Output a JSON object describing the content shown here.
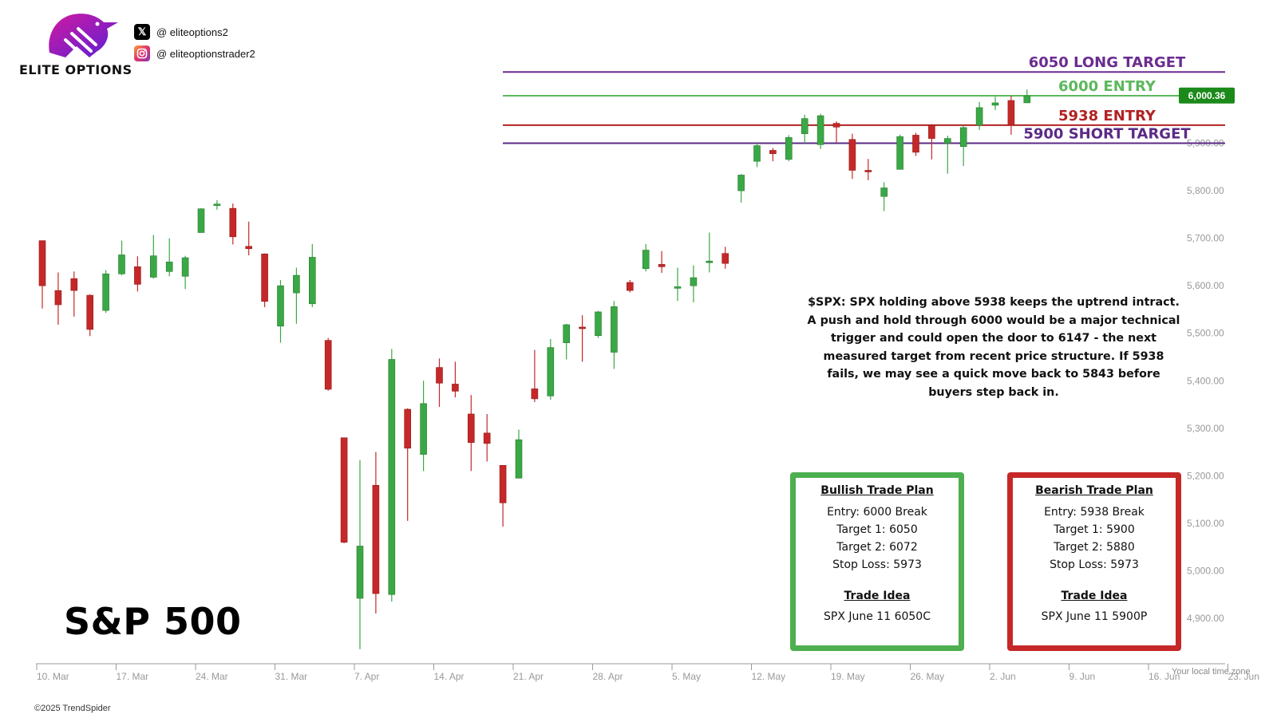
{
  "brand": {
    "name": "ELITE OPTIONS",
    "twitter": "@  eliteoptions2",
    "instagram": "@  eliteoptionstrader2",
    "twitter_icon": "x-logo-icon",
    "instagram_icon": "instagram-icon"
  },
  "title": "S&P 500",
  "commentary": "$SPX: SPX holding above 5938 keeps the uptrend intract. A push and hold through 6000 would be a major technical trigger and could open the door to 6147 - the next measured target from recent price structure. If 5938 fails, we may see a quick move back to 5843 before buyers step back in.",
  "bullish_plan": {
    "heading": "Bullish Trade Plan",
    "lines": [
      "Entry: 6000 Break",
      "Target 1: 6050",
      "Target 2: 6072",
      "Stop Loss: 5973"
    ],
    "idea_heading": "Trade Idea",
    "idea": "SPX June 11 6050C",
    "color": "#4caf50"
  },
  "bearish_plan": {
    "heading": "Bearish Trade Plan",
    "lines": [
      "Entry: 5938 Break",
      "Target 1: 5900",
      "Target 2: 5880",
      "Stop Loss: 5973"
    ],
    "idea_heading": "Trade Idea",
    "idea": "SPX June 11 5900P",
    "color": "#c62828"
  },
  "copyright": "©2025 TrendSpider",
  "timezone_note": "Your local time zone",
  "chart_data": {
    "type": "candlestick",
    "ylim": [
      4820,
      6100
    ],
    "y_ticks": [
      {
        "value": 5900,
        "label": "5,900.00"
      },
      {
        "value": 5800,
        "label": "5,800.00"
      },
      {
        "value": 5700,
        "label": "5,700.00"
      },
      {
        "value": 5600,
        "label": "5,600.00"
      },
      {
        "value": 5500,
        "label": "5,500.00"
      },
      {
        "value": 5400,
        "label": "5,400.00"
      },
      {
        "value": 5300,
        "label": "5,300.00"
      },
      {
        "value": 5200,
        "label": "5,200.00"
      },
      {
        "value": 5100,
        "label": "5,100.00"
      },
      {
        "value": 5000,
        "label": "5,000.00"
      },
      {
        "value": 4900,
        "label": "4,900.00"
      }
    ],
    "x_ticks": [
      "10. Mar",
      "17. Mar",
      "24. Mar",
      "31. Mar",
      "7. Apr",
      "14. Apr",
      "21. Apr",
      "28. Apr",
      "5. May",
      "12. May",
      "19. May",
      "26. May",
      "2. Jun",
      "9. Jun",
      "16. Jun",
      "23. Jun"
    ],
    "last_price": {
      "value": 6000.36,
      "label": "6,000.36",
      "color": "#1b8a1b"
    },
    "levels": [
      {
        "value": 6050,
        "label": "6050 LONG TARGET",
        "color": "#6a2c91"
      },
      {
        "value": 6000,
        "label": "6000 ENTRY",
        "color": "#5cb85c"
      },
      {
        "value": 5938,
        "label": "5938 ENTRY",
        "color": "#b22222"
      },
      {
        "value": 5900,
        "label": "5900 SHORT TARGET",
        "color": "#5b2a86"
      }
    ],
    "up_color": "#3aa845",
    "down_color": "#c62828",
    "candles": [
      {
        "d": 0,
        "o": 5695,
        "h": 5695,
        "l": 5552,
        "c": 5600
      },
      {
        "d": 1,
        "o": 5590,
        "h": 5628,
        "l": 5518,
        "c": 5560
      },
      {
        "d": 2,
        "o": 5615,
        "h": 5630,
        "l": 5535,
        "c": 5590
      },
      {
        "d": 3,
        "o": 5580,
        "h": 5582,
        "l": 5494,
        "c": 5508
      },
      {
        "d": 4,
        "o": 5548,
        "h": 5633,
        "l": 5543,
        "c": 5625
      },
      {
        "d": 5,
        "o": 5625,
        "h": 5695,
        "l": 5622,
        "c": 5665
      },
      {
        "d": 6,
        "o": 5640,
        "h": 5662,
        "l": 5588,
        "c": 5603
      },
      {
        "d": 7,
        "o": 5618,
        "h": 5707,
        "l": 5615,
        "c": 5663
      },
      {
        "d": 8,
        "o": 5630,
        "h": 5700,
        "l": 5620,
        "c": 5650
      },
      {
        "d": 9,
        "o": 5620,
        "h": 5663,
        "l": 5593,
        "c": 5659
      },
      {
        "d": 10,
        "o": 5712,
        "h": 5763,
        "l": 5712,
        "c": 5762
      },
      {
        "d": 11,
        "o": 5770,
        "h": 5780,
        "l": 5760,
        "c": 5772
      },
      {
        "d": 12,
        "o": 5763,
        "h": 5773,
        "l": 5687,
        "c": 5703
      },
      {
        "d": 13,
        "o": 5683,
        "h": 5735,
        "l": 5664,
        "c": 5678
      },
      {
        "d": 14,
        "o": 5667,
        "h": 5668,
        "l": 5555,
        "c": 5567
      },
      {
        "d": 15,
        "o": 5515,
        "h": 5612,
        "l": 5480,
        "c": 5600
      },
      {
        "d": 16,
        "o": 5585,
        "h": 5638,
        "l": 5520,
        "c": 5622
      },
      {
        "d": 17,
        "o": 5562,
        "h": 5688,
        "l": 5555,
        "c": 5660
      },
      {
        "d": 18,
        "o": 5485,
        "h": 5490,
        "l": 5379,
        "c": 5382
      },
      {
        "d": 19,
        "o": 5280,
        "h": 5280,
        "l": 5058,
        "c": 5060
      },
      {
        "d": 20,
        "o": 4942,
        "h": 5233,
        "l": 4835,
        "c": 5052
      },
      {
        "d": 21,
        "o": 5180,
        "h": 5250,
        "l": 4910,
        "c": 4952
      },
      {
        "d": 22,
        "o": 4950,
        "h": 5467,
        "l": 4935,
        "c": 5445
      },
      {
        "d": 23,
        "o": 5340,
        "h": 5342,
        "l": 5105,
        "c": 5258
      },
      {
        "d": 24,
        "o": 5245,
        "h": 5400,
        "l": 5210,
        "c": 5352
      },
      {
        "d": 25,
        "o": 5428,
        "h": 5447,
        "l": 5345,
        "c": 5395
      },
      {
        "d": 26,
        "o": 5393,
        "h": 5440,
        "l": 5365,
        "c": 5378
      },
      {
        "d": 27,
        "o": 5330,
        "h": 5370,
        "l": 5210,
        "c": 5270
      },
      {
        "d": 28,
        "o": 5290,
        "h": 5330,
        "l": 5230,
        "c": 5268
      },
      {
        "d": 29,
        "o": 5222,
        "h": 5222,
        "l": 5093,
        "c": 5143
      },
      {
        "d": 30,
        "o": 5195,
        "h": 5297,
        "l": 5195,
        "c": 5276
      },
      {
        "d": 31,
        "o": 5383,
        "h": 5465,
        "l": 5355,
        "c": 5362
      },
      {
        "d": 32,
        "o": 5368,
        "h": 5488,
        "l": 5360,
        "c": 5470
      },
      {
        "d": 33,
        "o": 5480,
        "h": 5520,
        "l": 5445,
        "c": 5518
      },
      {
        "d": 34,
        "o": 5513,
        "h": 5538,
        "l": 5440,
        "c": 5512
      },
      {
        "d": 35,
        "o": 5495,
        "h": 5547,
        "l": 5490,
        "c": 5545
      },
      {
        "d": 36,
        "o": 5460,
        "h": 5568,
        "l": 5425,
        "c": 5556
      },
      {
        "d": 37,
        "o": 5607,
        "h": 5612,
        "l": 5586,
        "c": 5590
      },
      {
        "d": 38,
        "o": 5636,
        "h": 5688,
        "l": 5630,
        "c": 5675
      },
      {
        "d": 39,
        "o": 5645,
        "h": 5673,
        "l": 5627,
        "c": 5640
      },
      {
        "d": 40,
        "o": 5597,
        "h": 5638,
        "l": 5568,
        "c": 5598
      },
      {
        "d": 41,
        "o": 5600,
        "h": 5643,
        "l": 5565,
        "c": 5617
      },
      {
        "d": 42,
        "o": 5650,
        "h": 5712,
        "l": 5628,
        "c": 5652
      },
      {
        "d": 43,
        "o": 5668,
        "h": 5682,
        "l": 5636,
        "c": 5647
      },
      {
        "d": 44,
        "o": 5800,
        "h": 5835,
        "l": 5775,
        "c": 5833
      },
      {
        "d": 45,
        "o": 5862,
        "h": 5900,
        "l": 5850,
        "c": 5895
      },
      {
        "d": 46,
        "o": 5885,
        "h": 5890,
        "l": 5862,
        "c": 5878
      },
      {
        "d": 47,
        "o": 5866,
        "h": 5917,
        "l": 5862,
        "c": 5912
      },
      {
        "d": 48,
        "o": 5920,
        "h": 5960,
        "l": 5900,
        "c": 5952
      },
      {
        "d": 49,
        "o": 5897,
        "h": 5962,
        "l": 5888,
        "c": 5958
      },
      {
        "d": 50,
        "o": 5942,
        "h": 5946,
        "l": 5902,
        "c": 5934
      },
      {
        "d": 51,
        "o": 5908,
        "h": 5920,
        "l": 5825,
        "c": 5843
      },
      {
        "d": 52,
        "o": 5843,
        "h": 5867,
        "l": 5822,
        "c": 5842
      },
      {
        "d": 53,
        "o": 5788,
        "h": 5818,
        "l": 5757,
        "c": 5806
      },
      {
        "d": 54,
        "o": 5845,
        "h": 5918,
        "l": 5845,
        "c": 5914
      },
      {
        "d": 55,
        "o": 5917,
        "h": 5922,
        "l": 5873,
        "c": 5881
      },
      {
        "d": 56,
        "o": 5938,
        "h": 5940,
        "l": 5866,
        "c": 5910
      },
      {
        "d": 57,
        "o": 5900,
        "h": 5916,
        "l": 5836,
        "c": 5910
      },
      {
        "d": 58,
        "o": 5893,
        "h": 5938,
        "l": 5852,
        "c": 5933
      },
      {
        "d": 59,
        "o": 5938,
        "h": 5987,
        "l": 5928,
        "c": 5975
      },
      {
        "d": 60,
        "o": 5980,
        "h": 5998,
        "l": 5970,
        "c": 5985
      },
      {
        "d": 61,
        "o": 5990,
        "h": 6000,
        "l": 5918,
        "c": 5938
      },
      {
        "d": 62,
        "o": 5985,
        "h": 6013,
        "l": 5985,
        "c": 6000
      }
    ]
  }
}
